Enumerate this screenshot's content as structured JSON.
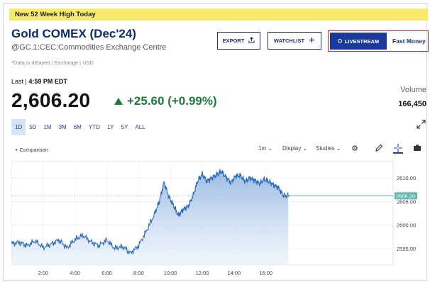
{
  "banner": {
    "text": "New 52 Week High Today"
  },
  "quote": {
    "title": "Gold COMEX (Dec'24)",
    "subtitle": "@GC.1:CEC:Commodities Exchange Centre",
    "delayed_note": "*Data is delayed | Exchange | USD",
    "last_label": "Last |",
    "last_time": "4:59 PM EDT",
    "price": "2,606.20",
    "change": "+25.60 (+0.99%)",
    "volume_label": "Volume",
    "volume_value": "166,450"
  },
  "actions": {
    "export_label": "EXPORT",
    "watchlist_label": "WATCHLIST",
    "livestream_label": "LIVESTREAM",
    "fast_money_label": "Fast Money"
  },
  "ranges": [
    "1D",
    "5D",
    "1M",
    "3M",
    "6M",
    "YTD",
    "1Y",
    "5Y",
    "ALL"
  ],
  "active_range": "1D",
  "toolbar": {
    "comparison_label": "+ Comparison",
    "interval_label": "1m",
    "display_label": "Display",
    "studies_label": "Studies"
  },
  "icons": {
    "export": "export-icon",
    "watchlist": "plus-icon",
    "livestream": "live-dot-icon",
    "expand": "expand-icon",
    "settings": "gear-icon",
    "draw": "pencil-icon",
    "crosshair": "crosshair-icon",
    "camera": "camera-icon"
  },
  "colors": {
    "accent": "#1b3470",
    "up": "#1e7b3a",
    "banner": "#f6e96b",
    "line": "#2f6db8",
    "last_price_marker": "#5fb7b0"
  },
  "chart_data": {
    "type": "area",
    "x_ticks": [
      "2:00",
      "4:00",
      "6:00",
      "8:00",
      "10:00",
      "12:00",
      "14:00",
      "16:00"
    ],
    "y_ticks": [
      2595,
      2600,
      2605,
      2610
    ],
    "y_tick_labels": [
      "2595.00",
      "2600.00",
      "2605.00",
      "2610.00"
    ],
    "ylim": [
      2591.5,
      2613.5
    ],
    "xlim": [
      0,
      24
    ],
    "last_price": 2606.2,
    "last_price_label": "2606.20",
    "series": [
      {
        "x": [
          0,
          0.5,
          1,
          1.5,
          2,
          2.5,
          3,
          3.5,
          4,
          4.5,
          5,
          5.5,
          6,
          6.5,
          7,
          7.5,
          8,
          8.5,
          9,
          9.3,
          9.6,
          9.9,
          10.2,
          10.5,
          10.8,
          11.1,
          11.4,
          11.7,
          12,
          12.3,
          12.6,
          12.9,
          13.2,
          13.5,
          13.8,
          14.1,
          14.4,
          14.7,
          15,
          15.3,
          15.6,
          15.9,
          16.2,
          16.5,
          16.8,
          17.1,
          17.4
        ],
        "y": [
          2596.0,
          2596.3,
          2595.6,
          2596.6,
          2595.2,
          2595.9,
          2596.8,
          2595.1,
          2596.9,
          2597.8,
          2596.4,
          2595.6,
          2596.8,
          2595.0,
          2595.4,
          2594.0,
          2595.6,
          2598.8,
          2602.3,
          2605.0,
          2609.1,
          2606.0,
          2604.1,
          2602.0,
          2603.3,
          2603.9,
          2606.0,
          2609.2,
          2610.8,
          2609.3,
          2610.0,
          2610.6,
          2611.4,
          2610.1,
          2609.0,
          2610.4,
          2610.5,
          2609.2,
          2610.0,
          2609.5,
          2608.8,
          2609.7,
          2609.2,
          2608.5,
          2607.9,
          2606.2,
          2606.2
        ]
      }
    ]
  }
}
